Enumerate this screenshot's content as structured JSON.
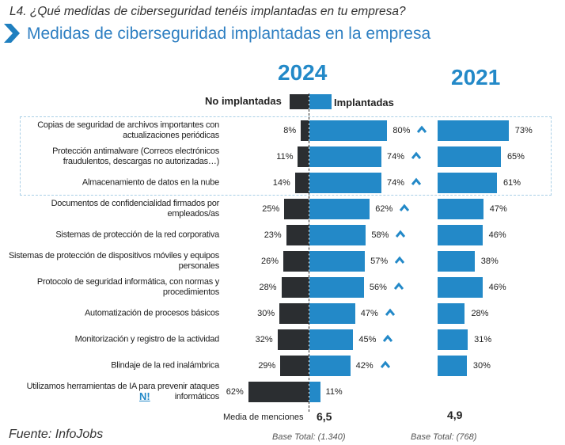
{
  "header": {
    "question": "L4. ¿Qué medidas de ciberseguridad tenéis implantadas en tu empresa?",
    "title": "Medidas de ciberseguridad implantadas en la empresa"
  },
  "colors": {
    "implantadas": "#2389c8",
    "no_implantadas": "#2b2e31",
    "accent": "#2e7fc2"
  },
  "chart_data": {
    "type": "bar",
    "title": "Medidas de ciberseguridad implantadas en la empresa",
    "years": [
      "2024",
      "2021"
    ],
    "legend": [
      "No implantadas",
      "Implantadas"
    ],
    "rows": [
      {
        "label": "Copias de seguridad de archivos importantes con actualizaciones periódicas",
        "no": "8%",
        "yes": "80%",
        "y2021": "73%",
        "up": true,
        "n": 8,
        "v": 80,
        "v21": 73
      },
      {
        "label": "Protección antimalware (Correos electrónicos fraudulentos, descargas no autorizadas…)",
        "no": "11%",
        "yes": "74%",
        "y2021": "65%",
        "up": true,
        "n": 11,
        "v": 74,
        "v21": 65
      },
      {
        "label": "Almacenamiento de datos en la nube",
        "no": "14%",
        "yes": "74%",
        "y2021": "61%",
        "up": true,
        "n": 14,
        "v": 74,
        "v21": 61
      },
      {
        "label": "Documentos de confidencialidad firmados por empleados/as",
        "no": "25%",
        "yes": "62%",
        "y2021": "47%",
        "up": true,
        "n": 25,
        "v": 62,
        "v21": 47
      },
      {
        "label": "Sistemas de protección de la red corporativa",
        "no": "23%",
        "yes": "58%",
        "y2021": "46%",
        "up": true,
        "n": 23,
        "v": 58,
        "v21": 46
      },
      {
        "label": "Sistemas de protección de dispositivos móviles y equipos personales",
        "no": "26%",
        "yes": "57%",
        "y2021": "38%",
        "up": true,
        "n": 26,
        "v": 57,
        "v21": 38
      },
      {
        "label": "Protocolo de seguridad informática, con normas y procedimientos",
        "no": "28%",
        "yes": "56%",
        "y2021": "46%",
        "up": true,
        "n": 28,
        "v": 56,
        "v21": 46
      },
      {
        "label": "Automatización de procesos básicos",
        "no": "30%",
        "yes": "47%",
        "y2021": "28%",
        "up": true,
        "n": 30,
        "v": 47,
        "v21": 28
      },
      {
        "label": "Monitorización y registro de la actividad",
        "no": "32%",
        "yes": "45%",
        "y2021": "31%",
        "up": true,
        "n": 32,
        "v": 45,
        "v21": 31
      },
      {
        "label": "Blindaje de la red inalámbrica",
        "no": "29%",
        "yes": "42%",
        "y2021": "30%",
        "up": true,
        "n": 29,
        "v": 42,
        "v21": 30
      },
      {
        "label": "Utilizamos herramientas de IA para prevenir ataques informáticos",
        "no": "62%",
        "yes": "11%",
        "y2021": "",
        "up": false,
        "n": 62,
        "v": 11,
        "v21": null,
        "new_badge": "N!"
      }
    ]
  },
  "footer": {
    "media_label": "Media de menciones",
    "media_2024": "6,5",
    "media_2021": "4,9",
    "base_2024": "Base Total: (1.340)",
    "base_2021": "Base Total: (768)",
    "source": "Fuente: InfoJobs"
  }
}
